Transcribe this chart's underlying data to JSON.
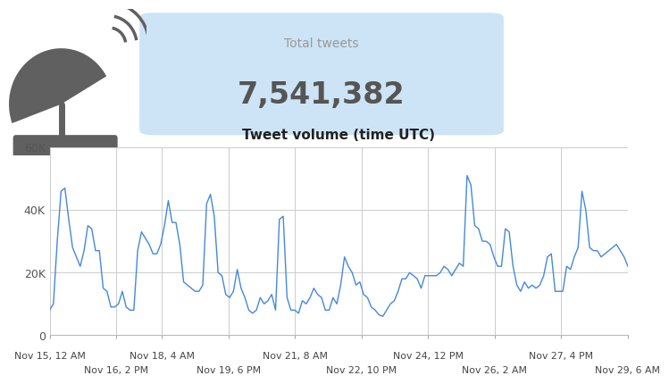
{
  "title": "Tweet volume (time UTC)",
  "line_color": "#4488dd",
  "background_color": "#ffffff",
  "grid_color": "#cccccc",
  "ylim": [
    0,
    60000
  ],
  "yticks": [
    0,
    20000,
    40000,
    60000
  ],
  "ytick_labels": [
    "0",
    "20K",
    "40K",
    "60K"
  ],
  "x_tick_labels_top": [
    "Nov 15, 12 AM",
    "Nov 18, 4 AM",
    "Nov 21, 8 AM",
    "Nov 24, 12 PM",
    "Nov 27, 4 PM"
  ],
  "x_tick_labels_bot": [
    "Nov 16, 2 PM",
    "Nov 19, 6 PM",
    "Nov 22, 10 PM",
    "Nov 26, 2 AM",
    "Nov 29, 6 AM"
  ],
  "total_tweets_label": "Total tweets",
  "total_tweets_value": "7,541,382",
  "info_box_color": "#cce4f5",
  "label_color": "#999999",
  "value_color": "#555555",
  "title_color": "#222222",
  "icon_color": "#606060",
  "y_values": [
    8000,
    10000,
    30000,
    46000,
    47000,
    37000,
    28000,
    25000,
    22000,
    27000,
    35000,
    34000,
    27000,
    27000,
    15000,
    14000,
    9000,
    9000,
    10000,
    14000,
    9000,
    8000,
    8000,
    27000,
    33000,
    31000,
    29000,
    26000,
    26000,
    29000,
    35000,
    43000,
    36000,
    36000,
    29000,
    17000,
    16000,
    15000,
    14000,
    14000,
    16000,
    42000,
    45000,
    38000,
    20000,
    19000,
    13000,
    12000,
    14000,
    21000,
    15000,
    12000,
    8000,
    7000,
    8000,
    12000,
    10000,
    11000,
    13000,
    8000,
    37000,
    38000,
    12000,
    8000,
    8000,
    7000,
    11000,
    10000,
    12000,
    15000,
    13000,
    12000,
    8000,
    8000,
    12000,
    10000,
    16000,
    25000,
    22000,
    20000,
    16000,
    17000,
    13000,
    12000,
    9000,
    8000,
    6500,
    6000,
    8000,
    10000,
    11000,
    14000,
    18000,
    18000,
    20000,
    19000,
    18000,
    15000,
    19000,
    19000,
    19000,
    19000,
    20000,
    22000,
    21000,
    19000,
    21000,
    23000,
    22000,
    51000,
    48000,
    35000,
    34000,
    30000,
    30000,
    29000,
    25000,
    22000,
    22000,
    34000,
    33000,
    22000,
    16000,
    14000,
    17000,
    15000,
    16000,
    15000,
    16000,
    19000,
    25000,
    26000,
    14000,
    14000,
    14000,
    22000,
    21000,
    25000,
    28000,
    46000,
    40000,
    28000,
    27000,
    27000,
    25000,
    26000,
    27000,
    28000,
    29000,
    27000,
    25000,
    22000
  ]
}
